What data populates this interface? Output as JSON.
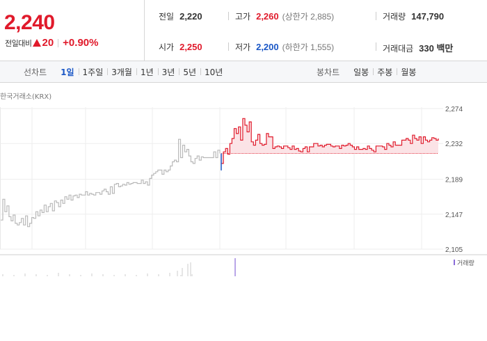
{
  "quote": {
    "price": "2,240",
    "change_label": "전일대비",
    "change": "20",
    "change_pct": "+0.90%"
  },
  "stats": {
    "prev_close": {
      "label": "전일",
      "value": "2,220"
    },
    "high": {
      "label": "고가",
      "value": "2,260",
      "sub": "(상한가 2,885)"
    },
    "volume": {
      "label": "거래량",
      "value": "147,790"
    },
    "open": {
      "label": "시가",
      "value": "2,250"
    },
    "low": {
      "label": "저가",
      "value": "2,200",
      "sub": "(하한가 1,555)"
    },
    "amount": {
      "label": "거래대금",
      "value": "330 백만"
    }
  },
  "line_tabs": {
    "label": "선차트",
    "items": [
      "1일",
      "1주일",
      "3개월",
      "1년",
      "3년",
      "5년",
      "10년"
    ],
    "active": 0
  },
  "candle_tabs": {
    "label": "봉차트",
    "items": [
      "일봉",
      "주봉",
      "월봉"
    ]
  },
  "colors": {
    "up": "#e01a2b",
    "down": "#1a57c6",
    "prev_day_line": "#b9b9b9",
    "fill": "#fbe3e6",
    "volume_legend": "#8a6bd8"
  },
  "chart_data": {
    "type": "line",
    "source": "한국거래소(KRX)",
    "y_ticks": [
      "2,274",
      "2,232",
      "2,189",
      "2,147",
      "2,105"
    ],
    "ylim": [
      2105,
      2274
    ],
    "baseline": 2220,
    "volume_legend": "거래량",
    "prev_day_series": [
      2140,
      2165,
      2150,
      2157,
      2144,
      2139,
      2146,
      2136,
      2134,
      2137,
      2142,
      2134,
      2145,
      2132,
      2136,
      2143,
      2142,
      2150,
      2145,
      2152,
      2149,
      2158,
      2150,
      2156,
      2160,
      2151,
      2163,
      2161,
      2156,
      2164,
      2160,
      2168,
      2165,
      2170,
      2164,
      2169,
      2170,
      2167,
      2171,
      2170,
      2170,
      2174,
      2170,
      2172,
      2171,
      2170,
      2173,
      2173,
      2171,
      2175,
      2177,
      2174,
      2171,
      2180,
      2172,
      2183,
      2184,
      2180,
      2181,
      2183,
      2182,
      2185,
      2183,
      2184,
      2185,
      2185,
      2184,
      2184,
      2188,
      2184,
      2186,
      2182,
      2190,
      2194,
      2196,
      2198,
      2200,
      2200,
      2195,
      2200,
      2198,
      2200,
      2205,
      2210,
      2212,
      2210,
      2237,
      2215,
      2230,
      2222,
      2225,
      2217,
      2210,
      2208,
      2214,
      2217,
      2212,
      2216,
      2215,
      2215,
      2215,
      2215,
      2215,
      2222,
      2215,
      2224,
      2220
    ],
    "today_series": [
      2208,
      2222,
      2226,
      2219,
      2232,
      2238,
      2250,
      2244,
      2252,
      2236,
      2262,
      2254,
      2246,
      2258,
      2234,
      2230,
      2236,
      2243,
      2232,
      2230,
      2231,
      2244,
      2240,
      2240,
      2226,
      2228,
      2229,
      2228,
      2226,
      2229,
      2229,
      2227,
      2225,
      2229,
      2225,
      2226,
      2223,
      2222,
      2226,
      2228,
      2222,
      2228,
      2228,
      2232,
      2232,
      2229,
      2230,
      2228,
      2230,
      2231,
      2231,
      2229,
      2228,
      2229,
      2229,
      2226,
      2230,
      2229,
      2230,
      2232,
      2230,
      2228,
      2225,
      2228,
      2225,
      2225,
      2226,
      2225,
      2229,
      2226,
      2224,
      2222,
      2229,
      2229,
      2229,
      2228,
      2225,
      2232,
      2230,
      2228,
      2234,
      2230,
      2230,
      2230,
      2236,
      2236,
      2238,
      2236,
      2232,
      2242,
      2238,
      2236,
      2240,
      2232,
      2240,
      2236,
      2234,
      2236,
      2239,
      2238,
      2236,
      2238
    ],
    "prev_day_volume_spikes": [
      8,
      12,
      18,
      20
    ],
    "today_volume_spike": 26
  }
}
